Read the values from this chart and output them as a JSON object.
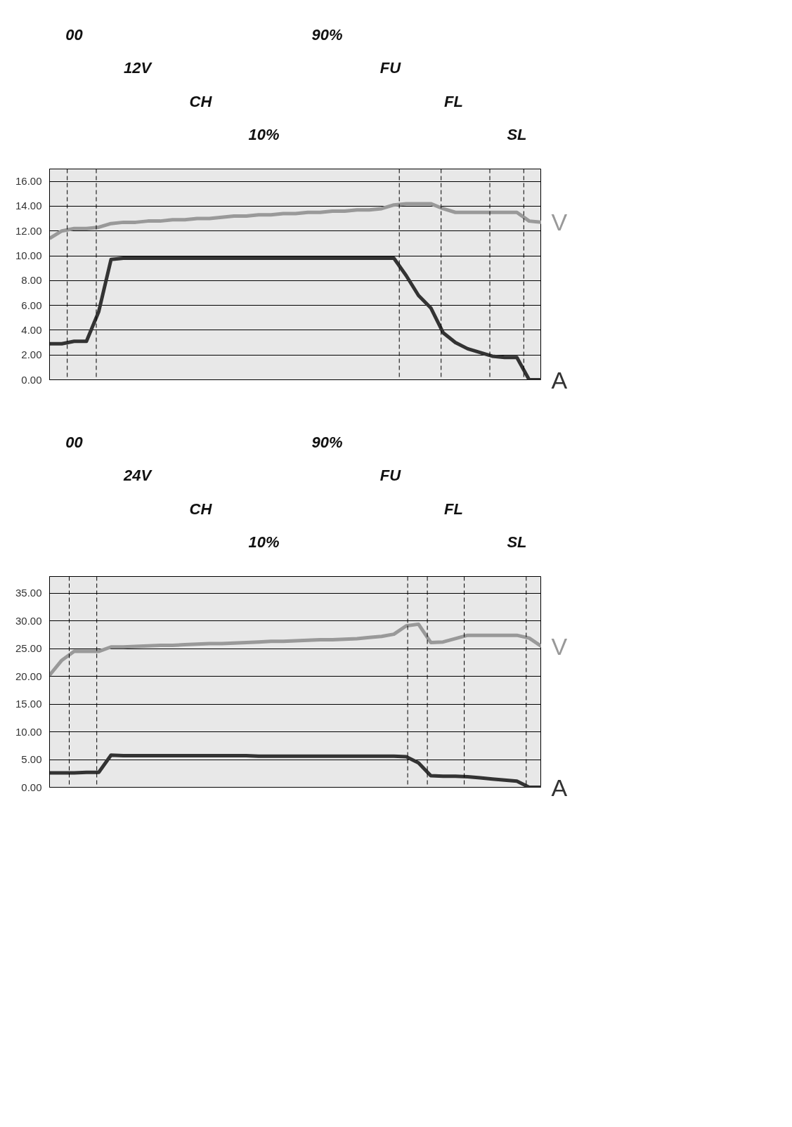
{
  "chart_data": [
    {
      "type": "line",
      "ylim": [
        0,
        17
      ],
      "tick_labels": "y",
      "grid": "y",
      "line_style": "solid",
      "marker": "none",
      "categories": [
        null,
        null,
        null,
        null,
        null,
        null,
        null,
        null,
        null,
        null,
        null,
        null,
        null,
        null,
        null,
        null,
        null,
        null,
        null,
        null,
        null,
        null,
        null,
        null,
        null,
        null,
        null,
        null,
        null,
        null,
        null,
        null,
        null,
        null,
        null,
        null,
        null,
        null,
        null,
        null,
        null
      ],
      "yticks": [
        {
          "value": 0,
          "label": "0.00"
        },
        {
          "value": 2,
          "label": "2.00"
        },
        {
          "value": 4,
          "label": "4.00"
        },
        {
          "value": 6,
          "label": "6.00"
        },
        {
          "value": 8,
          "label": "8.00"
        },
        {
          "value": 10,
          "label": "10.00"
        },
        {
          "value": 12,
          "label": "12.00"
        },
        {
          "value": 14,
          "label": "14.00"
        },
        {
          "value": 16,
          "label": "16.00"
        }
      ],
      "series": [
        {
          "name": "V",
          "color": "#999999",
          "values": [
            11.4,
            12.0,
            12.2,
            12.2,
            12.3,
            12.6,
            12.7,
            12.7,
            12.8,
            12.8,
            12.9,
            12.9,
            13.0,
            13.0,
            13.1,
            13.2,
            13.2,
            13.3,
            13.3,
            13.4,
            13.4,
            13.5,
            13.5,
            13.6,
            13.6,
            13.7,
            13.7,
            13.8,
            14.1,
            14.2,
            14.2,
            14.2,
            13.8,
            13.5,
            13.5,
            13.5,
            13.5,
            13.5,
            13.5,
            12.8,
            12.7
          ]
        },
        {
          "name": "A",
          "color": "#333333",
          "values": [
            2.9,
            2.9,
            3.1,
            3.1,
            5.5,
            9.7,
            9.8,
            9.8,
            9.8,
            9.8,
            9.8,
            9.8,
            9.8,
            9.8,
            9.8,
            9.8,
            9.8,
            9.8,
            9.8,
            9.8,
            9.8,
            9.8,
            9.8,
            9.8,
            9.8,
            9.8,
            9.8,
            9.8,
            9.8,
            8.4,
            6.8,
            5.8,
            3.8,
            3.0,
            2.5,
            2.2,
            1.9,
            1.8,
            1.8,
            0,
            0
          ]
        }
      ],
      "annotations": [
        "00",
        "12V",
        "CH",
        "10%",
        "90%",
        "FU",
        "FL",
        "SL"
      ]
    },
    {
      "type": "line",
      "ylim": [
        0,
        38
      ],
      "tick_labels": "y",
      "grid": "y",
      "line_style": "solid",
      "marker": "none",
      "categories": [
        null,
        null,
        null,
        null,
        null,
        null,
        null,
        null,
        null,
        null,
        null,
        null,
        null,
        null,
        null,
        null,
        null,
        null,
        null,
        null,
        null,
        null,
        null,
        null,
        null,
        null,
        null,
        null,
        null,
        null,
        null,
        null,
        null,
        null,
        null,
        null,
        null,
        null,
        null,
        null,
        null
      ],
      "yticks": [
        {
          "value": 0,
          "label": "0.00"
        },
        {
          "value": 5,
          "label": "5.00"
        },
        {
          "value": 10,
          "label": "10.00"
        },
        {
          "value": 15,
          "label": "15.00"
        },
        {
          "value": 20,
          "label": "20.00"
        },
        {
          "value": 25,
          "label": "25.00"
        },
        {
          "value": 30,
          "label": "30.00"
        },
        {
          "value": 35,
          "label": "35.00"
        }
      ],
      "series": [
        {
          "name": "V",
          "color": "#999999",
          "values": [
            20.2,
            22.9,
            24.5,
            24.5,
            24.5,
            25.3,
            25.3,
            25.4,
            25.5,
            25.6,
            25.6,
            25.7,
            25.8,
            25.9,
            25.9,
            26.0,
            26.1,
            26.2,
            26.3,
            26.3,
            26.4,
            26.5,
            26.6,
            26.6,
            26.7,
            26.8,
            27.0,
            27.2,
            27.6,
            29.1,
            29.4,
            26.1,
            26.2,
            26.8,
            27.4,
            27.4,
            27.4,
            27.4,
            27.4,
            26.9,
            25.4
          ]
        },
        {
          "name": "A",
          "color": "#333333",
          "values": [
            2.6,
            2.6,
            2.6,
            2.7,
            2.7,
            5.8,
            5.7,
            5.7,
            5.7,
            5.7,
            5.7,
            5.7,
            5.7,
            5.7,
            5.7,
            5.7,
            5.7,
            5.6,
            5.6,
            5.6,
            5.6,
            5.6,
            5.6,
            5.6,
            5.6,
            5.6,
            5.6,
            5.6,
            5.6,
            5.5,
            4.4,
            2.1,
            2.0,
            2.0,
            1.9,
            1.7,
            1.5,
            1.3,
            1.1,
            0,
            0
          ]
        }
      ],
      "annotations": [
        "00",
        "24V",
        "CH",
        "10%",
        "90%",
        "FU",
        "FL",
        "SL"
      ]
    }
  ]
}
